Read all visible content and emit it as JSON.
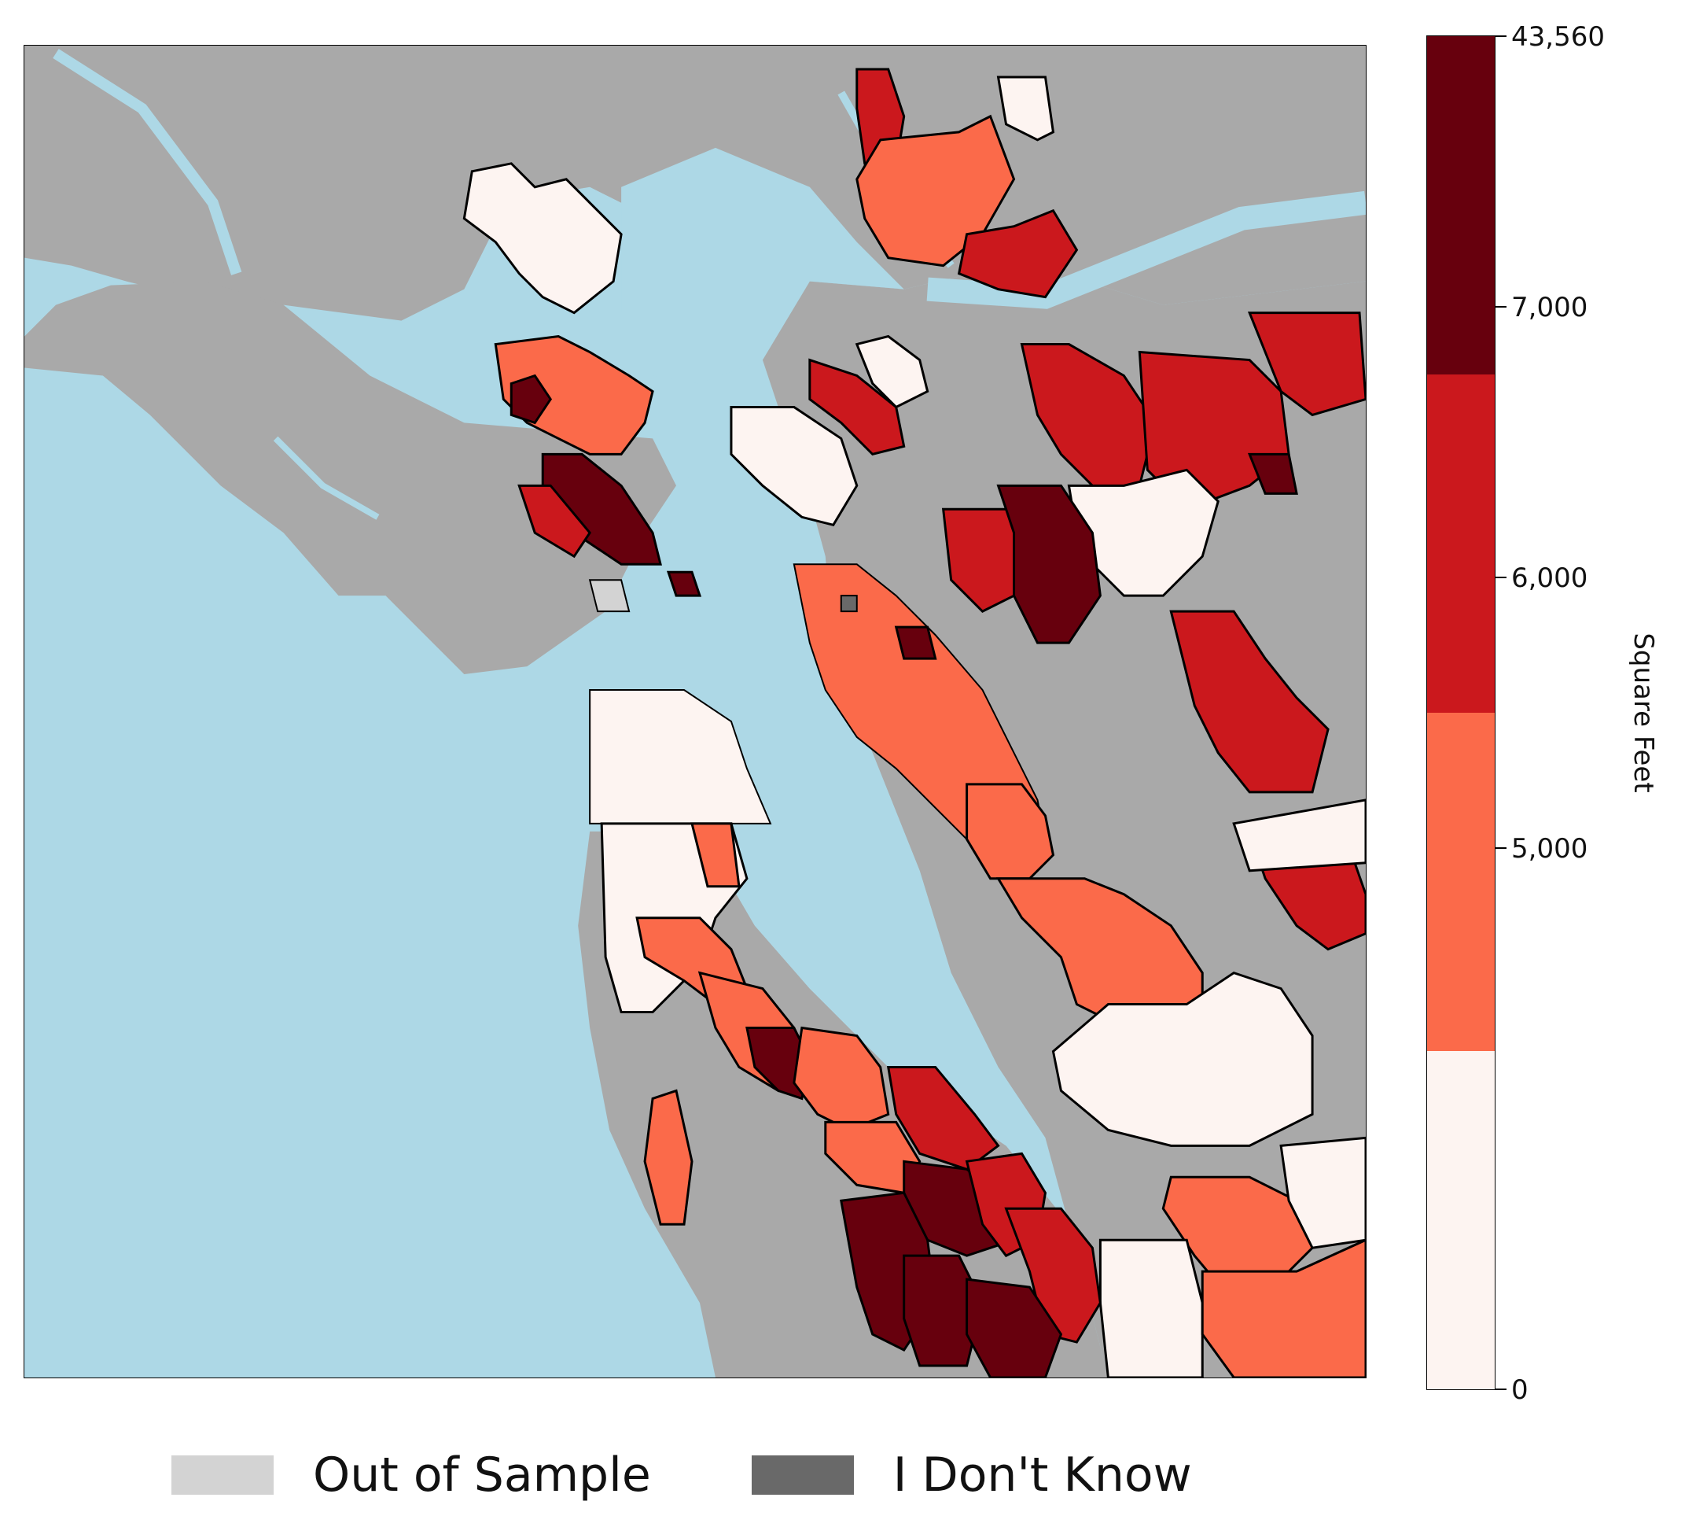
{
  "colors": {
    "water": "#add8e6",
    "land": "#a9a9a9",
    "bin_0_5000": "#fdf4f1",
    "bin_5000_6000": "#fb6a4a",
    "bin_6000_7000": "#cb181d",
    "bin_7000_43560": "#67000d",
    "out_of_sample": "#d3d3d3",
    "dont_know": "#696969"
  },
  "colorbar": {
    "title": "Square Feet",
    "ticks": [
      "43,560",
      "7,000",
      "6,000",
      "5,000",
      "0"
    ],
    "segments": [
      "#67000d",
      "#cb181d",
      "#fb6a4a",
      "#fdf4f1"
    ]
  },
  "legend": [
    {
      "label": "Out of Sample",
      "color": "#d3d3d3"
    },
    {
      "label": "I Don't Know",
      "color": "#696969"
    }
  ]
}
